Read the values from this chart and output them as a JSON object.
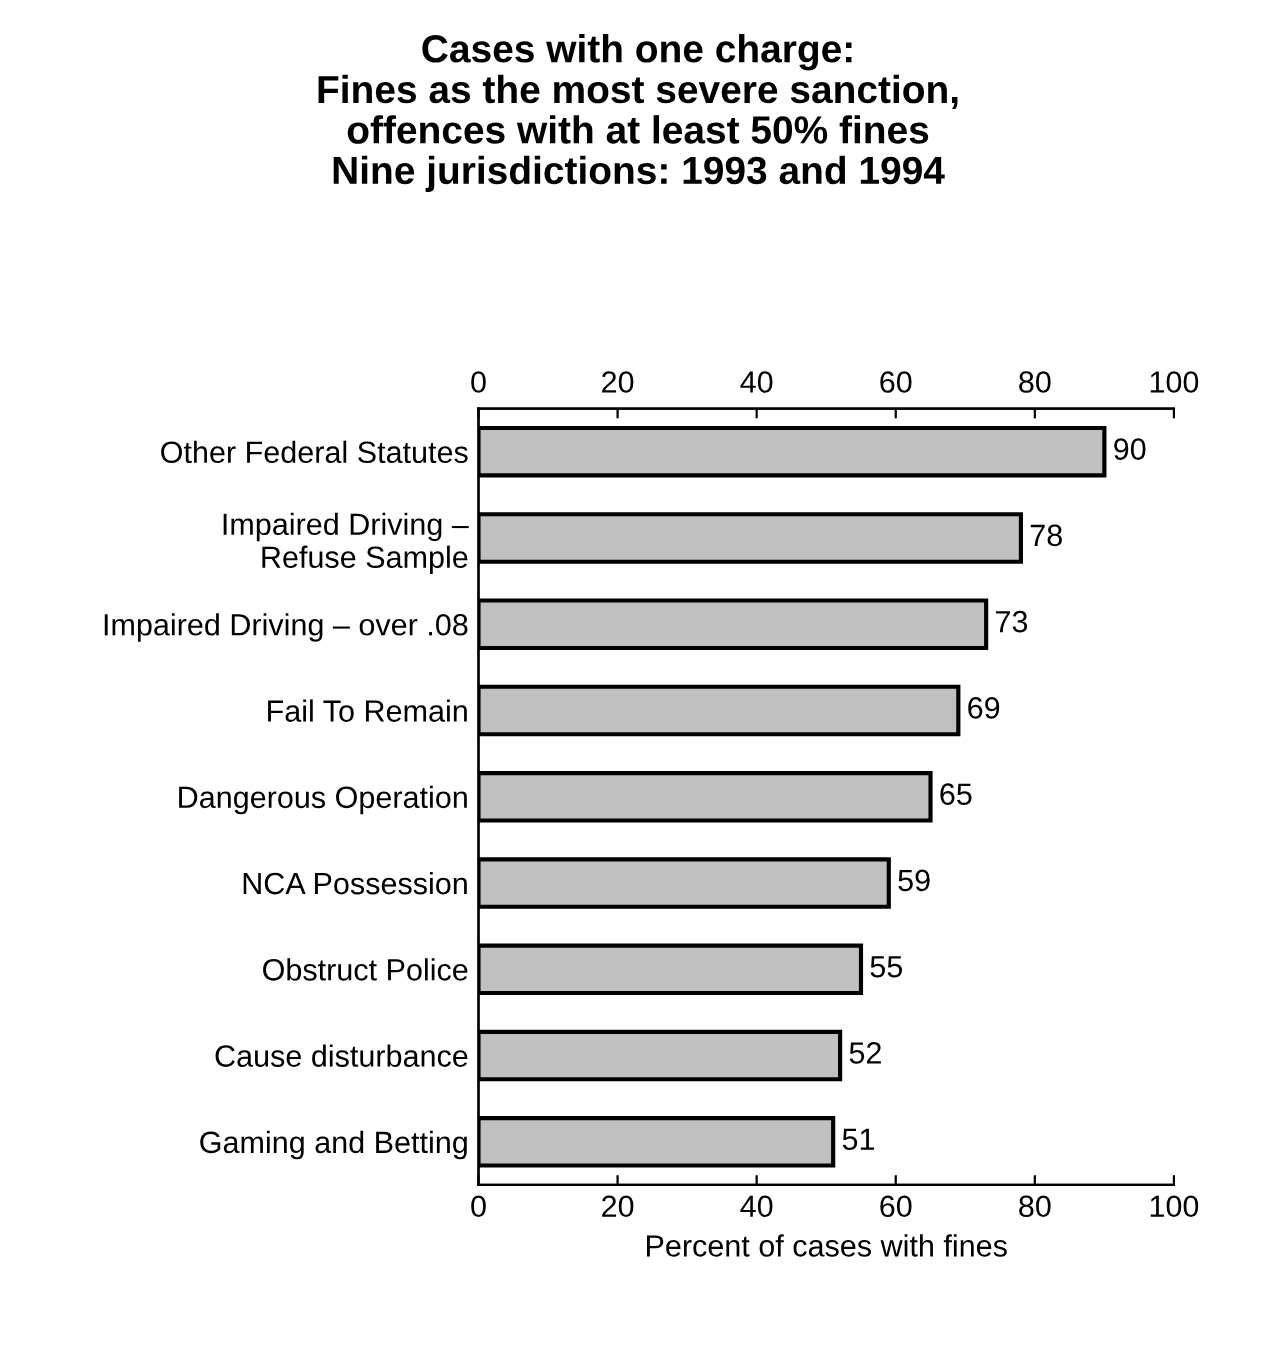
{
  "chart_data": {
    "type": "bar",
    "orientation": "horizontal",
    "title": "Cases with one charge:\nFines as the most severe sanction,\noffences with at least 50% fines\nNine jurisdictions: 1993 and 1994",
    "xlabel": "Percent of cases with fines",
    "categories": [
      "Other Federal Statutes",
      "Impaired Driving –\nRefuse Sample",
      "Impaired Driving – over .08",
      "Fail To Remain",
      "Dangerous Operation",
      "NCA Possession",
      "Obstruct Police",
      "Cause disturbance",
      "Gaming and Betting"
    ],
    "values": [
      90,
      78,
      73,
      69,
      65,
      59,
      55,
      52,
      51
    ],
    "color": "#c0c0c0",
    "xlim": [
      0,
      100
    ],
    "xticks": [
      0,
      20,
      40,
      60,
      80,
      100
    ],
    "x2lim": [
      0,
      100
    ],
    "x2ticks": [
      0,
      20,
      40,
      60,
      80,
      100
    ],
    "data_labels": true,
    "grid": false,
    "legend": false
  }
}
